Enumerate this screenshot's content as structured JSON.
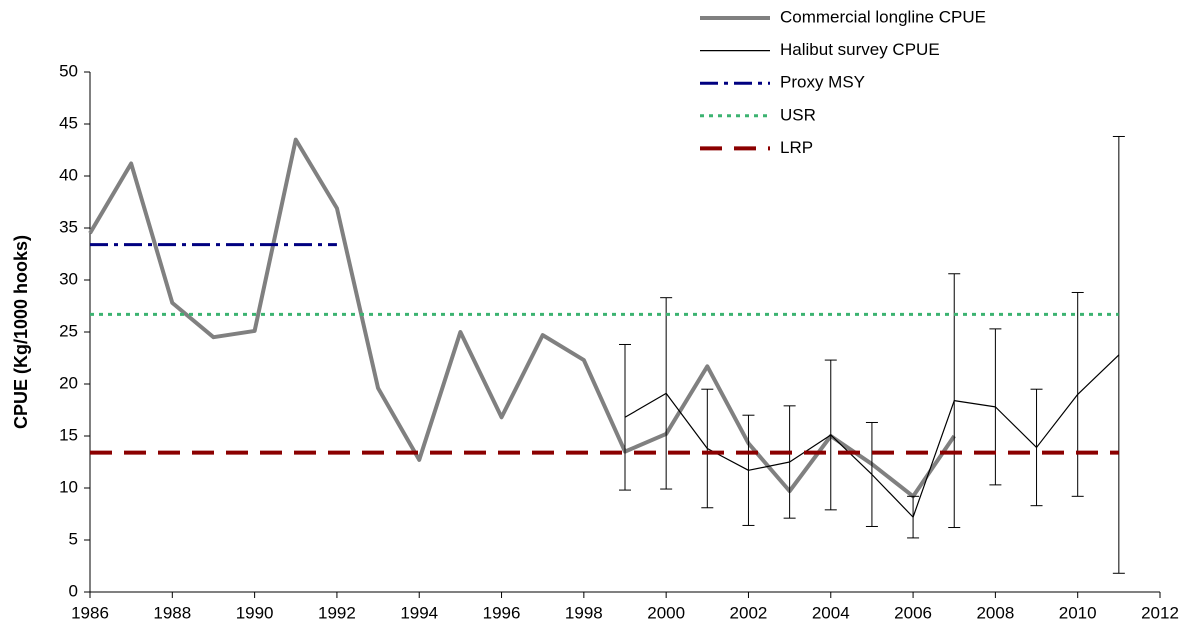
{
  "chart_data": {
    "type": "line",
    "y_label": "CPUE (Kg/1000 hooks)",
    "xlim": [
      1986,
      2012
    ],
    "xticks": [
      1986,
      1988,
      1990,
      1992,
      1994,
      1996,
      1998,
      2000,
      2002,
      2004,
      2006,
      2008,
      2010,
      2012
    ],
    "ylim": [
      0,
      50
    ],
    "yticks": [
      0,
      5,
      10,
      15,
      20,
      25,
      30,
      35,
      40,
      45,
      50
    ],
    "legend": "top-right",
    "series": [
      {
        "name": "Commercial longline CPUE",
        "color": "#808080",
        "width": 4,
        "style": "solid",
        "x": [
          1986,
          1987,
          1988,
          1989,
          1990,
          1991,
          1992,
          1993,
          1994,
          1995,
          1996,
          1997,
          1998,
          1999,
          2000,
          2001,
          2002,
          2003,
          2004,
          2005,
          2006,
          2007
        ],
        "values": [
          34.5,
          41.2,
          27.8,
          24.5,
          25.1,
          43.5,
          36.9,
          19.6,
          12.7,
          25.0,
          16.8,
          24.7,
          22.3,
          13.5,
          15.2,
          21.7,
          14.3,
          9.7,
          15.0,
          12.3,
          9.2,
          15.0
        ]
      },
      {
        "name": "Halibut survey CPUE",
        "color": "#000000",
        "width": 1.2,
        "style": "solid",
        "x": [
          1999,
          2000,
          2001,
          2002,
          2003,
          2004,
          2005,
          2006,
          2007,
          2008,
          2009,
          2010,
          2011
        ],
        "values": [
          16.8,
          19.1,
          13.8,
          11.7,
          12.5,
          15.1,
          11.3,
          7.2,
          18.4,
          17.8,
          13.9,
          19.0,
          22.8
        ],
        "errors": [
          7.0,
          9.2,
          5.7,
          5.3,
          5.4,
          7.2,
          5.0,
          2.0,
          12.2,
          7.5,
          5.6,
          9.8,
          21.0
        ]
      },
      {
        "name": "Proxy MSY",
        "color": "#000080",
        "width": 3,
        "style": "dashdot",
        "x": [
          1986,
          1992
        ],
        "values": [
          33.4,
          33.4
        ]
      },
      {
        "name": "USR",
        "color": "#3cb371",
        "width": 3,
        "style": "dotted",
        "x": [
          1986,
          2011
        ],
        "values": [
          26.7,
          26.7
        ]
      },
      {
        "name": "LRP",
        "color": "#8b0000",
        "width": 4,
        "style": "dashed",
        "x": [
          1986,
          2011
        ],
        "values": [
          13.4,
          13.4
        ]
      }
    ]
  }
}
